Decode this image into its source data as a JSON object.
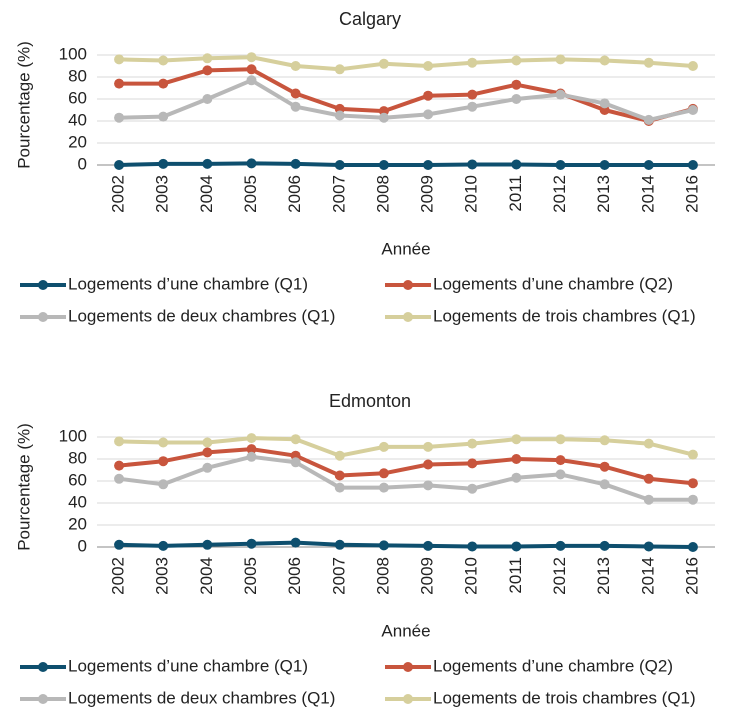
{
  "chart_data": [
    {
      "type": "line",
      "title": "Calgary",
      "x_label": "Année",
      "y_label": "Pourcentage (%)",
      "categories": [
        "2002",
        "2003",
        "2004",
        "2005",
        "2006",
        "2007",
        "2008",
        "2009",
        "2010",
        "2011",
        "2012",
        "2013",
        "2014",
        "2016"
      ],
      "ylim": [
        0,
        100
      ],
      "yticks": [
        0,
        20,
        40,
        60,
        80,
        100
      ],
      "grid": true,
      "series": [
        {
          "name": "Logements d’une chambre (Q1)",
          "color": "#0e4f6e",
          "values": [
            0,
            1,
            1,
            1.5,
            1,
            0,
            0,
            0,
            0.5,
            0.5,
            0,
            0,
            0,
            0
          ]
        },
        {
          "name": "Logements d’une chambre (Q2)",
          "color": "#c8553d",
          "values": [
            74,
            74,
            86,
            87,
            65,
            51,
            49,
            63,
            64,
            73,
            65,
            50,
            40,
            51
          ]
        },
        {
          "name": "Logements de deux chambres (Q1)",
          "color": "#b8b8b8",
          "values": [
            43,
            44,
            60,
            77,
            53,
            45,
            43,
            46,
            53,
            60,
            64,
            56,
            41,
            50
          ]
        },
        {
          "name": "Logements de trois chambres (Q1)",
          "color": "#d6cf9c",
          "values": [
            96,
            95,
            97,
            98,
            90,
            87,
            92,
            90,
            93,
            95,
            96,
            95,
            93,
            90
          ]
        }
      ]
    },
    {
      "type": "line",
      "title": "Edmonton",
      "x_label": "Année",
      "y_label": "Pourcentage (%)",
      "categories": [
        "2002",
        "2003",
        "2004",
        "2005",
        "2006",
        "2007",
        "2008",
        "2009",
        "2010",
        "2011",
        "2012",
        "2013",
        "2014",
        "2016"
      ],
      "ylim": [
        0,
        100
      ],
      "yticks": [
        0,
        20,
        40,
        60,
        80,
        100
      ],
      "grid": true,
      "series": [
        {
          "name": "Logements d’une chambre (Q1)",
          "color": "#0e4f6e",
          "values": [
            2,
            1,
            2,
            3,
            4,
            2,
            1.5,
            1,
            0.5,
            0.5,
            1,
            1,
            0.5,
            0
          ]
        },
        {
          "name": "Logements d’une chambre (Q2)",
          "color": "#c8553d",
          "values": [
            74,
            78,
            86,
            89,
            83,
            65,
            67,
            75,
            76,
            80,
            79,
            73,
            62,
            58
          ]
        },
        {
          "name": "Logements de deux chambres (Q1)",
          "color": "#b8b8b8",
          "values": [
            62,
            57,
            72,
            82,
            77,
            54,
            54,
            56,
            53,
            63,
            66,
            57,
            43,
            43
          ]
        },
        {
          "name": "Logements de trois chambres (Q1)",
          "color": "#d6cf9c",
          "values": [
            96,
            95,
            95,
            99,
            98,
            83,
            91,
            91,
            94,
            98,
            98,
            97,
            94,
            84
          ]
        }
      ]
    }
  ]
}
